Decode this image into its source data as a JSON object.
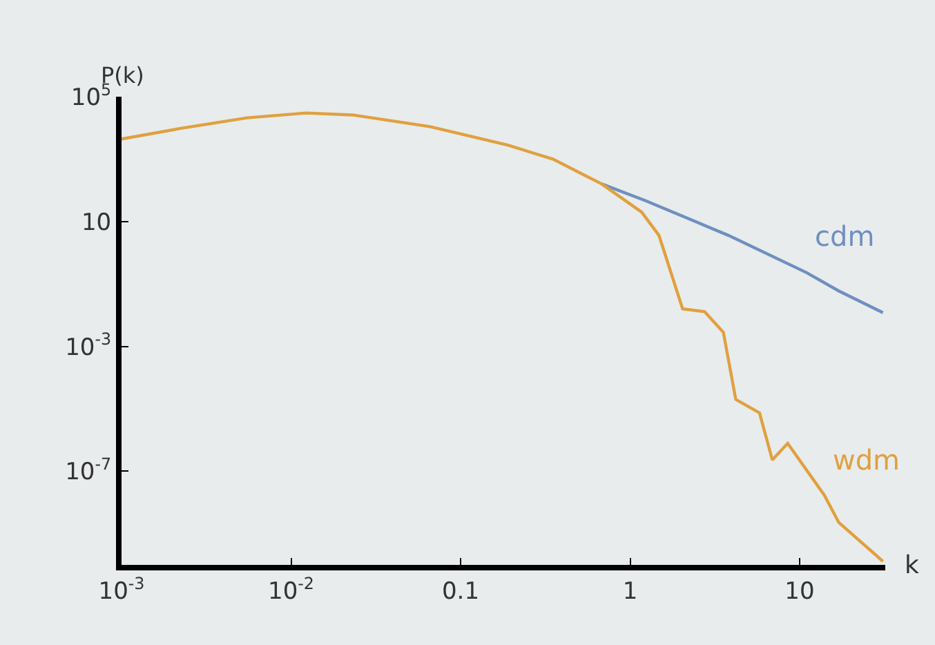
{
  "chart_data": {
    "type": "line",
    "ylabel": "P(k)",
    "xlabel": "k",
    "log": "xy",
    "grid": false,
    "legend": false,
    "marker": "none",
    "line_style": "solid",
    "xlim": [
      0.001,
      32
    ],
    "xticks": [
      {
        "value": 0.001,
        "label": "10$^{-3}$"
      },
      {
        "value": 0.01,
        "label": "10$^{-2}$"
      },
      0.1,
      1,
      10
    ],
    "ylim": [
      1e-10,
      100000
    ],
    "yticks": [
      {
        "value": 100000,
        "label": "10$^{5}$"
      },
      10,
      {
        "value": 0.001,
        "label": "10$^{-3}$"
      },
      {
        "value": 1e-07,
        "label": "10$^{-7}$"
      }
    ],
    "series": [
      {
        "name": "cdm",
        "color": "#6f8fc0",
        "x": [
          0.68,
          1.23,
          3.8,
          11,
          17,
          31
        ],
        "values": [
          160,
          47,
          3.6,
          0.23,
          0.06,
          0.012
        ]
      },
      {
        "name": "wdm",
        "color": "#e0a040",
        "x": [
          0.001,
          0.0022,
          0.0055,
          0.0123,
          0.023,
          0.066,
          0.19,
          0.35,
          0.68,
          1.17,
          1.48,
          2.04,
          2.75,
          3.55,
          4.2,
          5.8,
          6.9,
          8.5,
          14,
          17,
          31
        ],
        "values": [
          4400,
          9500,
          21000,
          30000,
          26000,
          11000,
          2800,
          1000,
          160,
          20,
          3.6,
          0.016,
          0.013,
          0.0028,
          2e-05,
          7.4e-06,
          2.3e-07,
          7.8e-07,
          1.7e-08,
          2.3e-09,
          1.3e-10
        ]
      }
    ]
  }
}
